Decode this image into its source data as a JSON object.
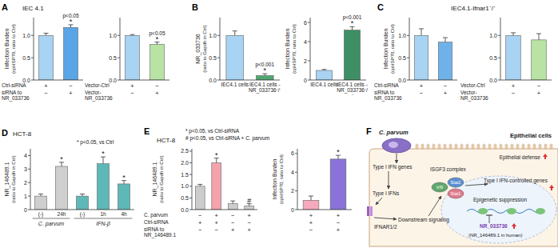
{
  "chart_data": [
    {
      "panel": "A",
      "type": "bar",
      "title": "IEC 4.1",
      "ylabel": "Infection Burden",
      "ylabel_sub": "(cpHSP70, ratio to Ctrl)",
      "categories": [
        null,
        null
      ],
      "values": [
        1.0,
        1.18
      ],
      "errors": [
        0.05,
        0.06
      ],
      "colors": [
        "#a8d3f2",
        "#5aa5e6"
      ],
      "significance": [
        null,
        "*"
      ],
      "p_values": [
        null,
        "p<0.05"
      ],
      "conditions": [
        {
          "label": "Ctrl-siRNA",
          "marks": [
            "+",
            "−"
          ]
        },
        {
          "label": "siRNA to NR_033736",
          "marks": [
            "−",
            "+"
          ]
        }
      ],
      "ylim": [
        0,
        1.4
      ],
      "yticks": [
        {
          "value": 0,
          "label": "0.0"
        },
        0.5,
        {
          "value": 1,
          "label": "1.0"
        }
      ]
    },
    {
      "type": "bar",
      "categories": [
        null,
        null
      ],
      "values": [
        1.0,
        0.8
      ],
      "errors": [
        0.02,
        0.05
      ],
      "colors": [
        "#a8d3f2",
        "#b9e3a4"
      ],
      "significance": [
        null,
        "*"
      ],
      "p_values": [
        null,
        "p<0.05"
      ],
      "conditions": [
        {
          "label": "Vector-Ctrl",
          "marks": [
            "+",
            "−"
          ]
        },
        {
          "label": "Vector-NR_033736",
          "marks": [
            "−",
            "+"
          ]
        }
      ],
      "ylim": [
        0,
        1.4
      ],
      "yticks": [
        {
          "value": 0,
          "label": "0.0"
        },
        0.5,
        {
          "value": 1,
          "label": "1.0"
        }
      ]
    },
    {
      "panel": "B",
      "type": "bar",
      "ylabel": "NR_033736",
      "ylabel_sub": "(ratio to Gapdh in Ctrl)",
      "categories": [
        "IEC4.1 cells",
        "IEC4.1 cells -NR_033736⁻/⁻"
      ],
      "values": [
        1.0,
        0.1
      ],
      "errors": [
        0.1,
        0.04
      ],
      "colors": [
        "#a8d3f2",
        "#4fa870"
      ],
      "significance": [
        null,
        "*"
      ],
      "p_values": [
        null,
        "p<0.001"
      ],
      "ylim": [
        0,
        1.4
      ],
      "yticks": [
        {
          "value": 0,
          "label": "0.0"
        },
        0.5,
        {
          "value": 1,
          "label": "1.0"
        }
      ]
    },
    {
      "type": "bar",
      "ylabel": "Infection Burden",
      "ylabel_sub": "(cpHSP70, ratio to Ctrl)",
      "categories": [
        "IEC4.1 cells",
        "IEC4.1 cells -NR_033736⁻/⁻"
      ],
      "values": [
        1.0,
        5.2
      ],
      "errors": [
        0.1,
        0.35
      ],
      "colors": [
        "#a8d3f2",
        "#3f8f66"
      ],
      "significance": [
        null,
        "*"
      ],
      "p_values": [
        null,
        "p<0.001"
      ],
      "ylim": [
        0,
        6.5
      ],
      "yticks": [
        0,
        2,
        4,
        6
      ]
    },
    {
      "panel": "C",
      "type": "bar",
      "title": "IEC4.1-Ifnar1⁻/⁻",
      "ylabel": "Infection Burden",
      "ylabel_sub": "(cpHSP70, ratio to Ctrl)",
      "categories": [
        null,
        null
      ],
      "values": [
        1.0,
        0.85
      ],
      "errors": [
        0.15,
        0.1
      ],
      "colors": [
        "#a8d3f2",
        "#6fb2ea"
      ],
      "conditions": [
        {
          "label": "Ctrl-siRNA",
          "marks": [
            "+",
            "−"
          ]
        },
        {
          "label": "siRNA to NR_033736",
          "marks": [
            "−",
            "+"
          ]
        }
      ],
      "ylim": [
        0,
        1.4
      ],
      "yticks": [
        {
          "value": 0,
          "label": "0.0"
        },
        0.5,
        {
          "value": 1,
          "label": "1.0"
        }
      ]
    },
    {
      "type": "bar",
      "categories": [
        null,
        null
      ],
      "values": [
        1.0,
        0.9
      ],
      "errors": [
        0.06,
        0.14
      ],
      "colors": [
        "#a8d3f2",
        "#b9e3a4"
      ],
      "conditions": [
        {
          "label": "Vector-Ctrl",
          "marks": [
            "+",
            "−"
          ]
        },
        {
          "label": "Vector-NR_033736",
          "marks": [
            "−",
            "+"
          ]
        }
      ],
      "ylim": [
        0,
        1.4
      ],
      "yticks": [
        {
          "value": 0,
          "label": "0.0"
        },
        0.5,
        {
          "value": 1,
          "label": "1.0"
        }
      ]
    },
    {
      "panel": "D",
      "type": "bar",
      "title": "HCT-8",
      "ylabel": "NR_146489.1",
      "ylabel_sub": "(ratio to Gapdh in Ctrl)",
      "categories": [
        "(-)",
        "24h",
        "(-)",
        "1h",
        "4h"
      ],
      "groups": [
        {
          "label": "C. parvum",
          "from": 0,
          "to": 1
        },
        {
          "label": "IFN-β",
          "from": 2,
          "to": 4
        }
      ],
      "values": [
        1.0,
        3.2,
        1.0,
        3.4,
        1.9
      ],
      "errors": [
        0.15,
        0.3,
        0.15,
        0.5,
        0.25
      ],
      "colors": [
        "#cfcfcf",
        "#cfcfcf",
        "#5fb8b8",
        "#5fb8b8",
        "#5fb8b8"
      ],
      "significance": [
        null,
        "*",
        null,
        "*",
        "*"
      ],
      "annotations": [
        "* p<0.05, vs Ctrl"
      ],
      "ylim": [
        0,
        4.5
      ],
      "yticks": [
        0,
        1,
        2,
        3,
        4
      ]
    },
    {
      "panel": "E",
      "type": "bar",
      "title": "HCT-8",
      "ylabel": "NR_146489.1",
      "ylabel_sub": "(ratio to Gapdh in Ctrl)",
      "categories": [
        null,
        null,
        null,
        null
      ],
      "values": [
        1.0,
        2.0,
        0.25,
        0.15
      ],
      "errors": [
        0.08,
        0.2,
        0.12,
        0.1
      ],
      "colors": [
        "#cccccc",
        "#f4a3ad",
        "#cccccc",
        "#cccccc"
      ],
      "significance": [
        null,
        "*",
        null,
        "#"
      ],
      "annotations": [
        "* p<0.05, vs Ctrl-siRNA",
        "# p<0.05, vs Ctrl-siRNA + C. parvum"
      ],
      "conditions": [
        {
          "label": "C. parvum",
          "marks": [
            "−",
            "+",
            "−",
            "+"
          ]
        },
        {
          "label": "Ctrl-siRNA",
          "marks": [
            "+",
            "+",
            "−",
            "−"
          ]
        },
        {
          "label": "siRNA to NR_146489.1",
          "marks": [
            "−",
            "−",
            "+",
            "+"
          ]
        }
      ],
      "ylim": [
        0,
        2.6
      ],
      "yticks": [
        {
          "value": 0,
          "label": "0.0"
        },
        0.5,
        {
          "value": 1,
          "label": "1.0"
        },
        1.5,
        {
          "value": 2,
          "label": "2.0"
        },
        2.5
      ]
    },
    {
      "type": "bar",
      "ylabel": "Infection Burden",
      "ylabel_sub": "(cpHSP70, ratio to Ctrl)",
      "categories": [
        null,
        null
      ],
      "values": [
        1.0,
        5.4
      ],
      "errors": [
        0.45,
        0.4
      ],
      "colors": [
        "#f5a9bc",
        "#8b72d8"
      ],
      "significance": [
        null,
        "*"
      ],
      "conditions": [
        {
          "marks": [
            "+",
            "+"
          ]
        },
        {
          "marks": [
            "+",
            "−"
          ]
        },
        {
          "marks": [
            "−",
            "+"
          ]
        }
      ],
      "ylim": [
        0,
        6.5
      ],
      "yticks": [
        0,
        2,
        4,
        6
      ]
    }
  ],
  "diagram": {
    "panel": "F",
    "parasite": "C. parvum",
    "cell": "Epithelial cells",
    "defense": "Epithelial defense",
    "ifn_genes": "Type I IFN genes",
    "complex": "ISGF3 complex",
    "proteins": [
      "Irf9",
      "Stat2",
      "Stat1"
    ],
    "ifns": "Type I IFNs",
    "receptor": "IFNAR1/2",
    "signaling": "Downstream signaling",
    "suppression": "Epigenetic suppression",
    "controlled_genes": "Type I IFN-controlled genes",
    "lncrna": "NR_033736",
    "lncrna_human": "(NR_146489.1 in human)"
  }
}
